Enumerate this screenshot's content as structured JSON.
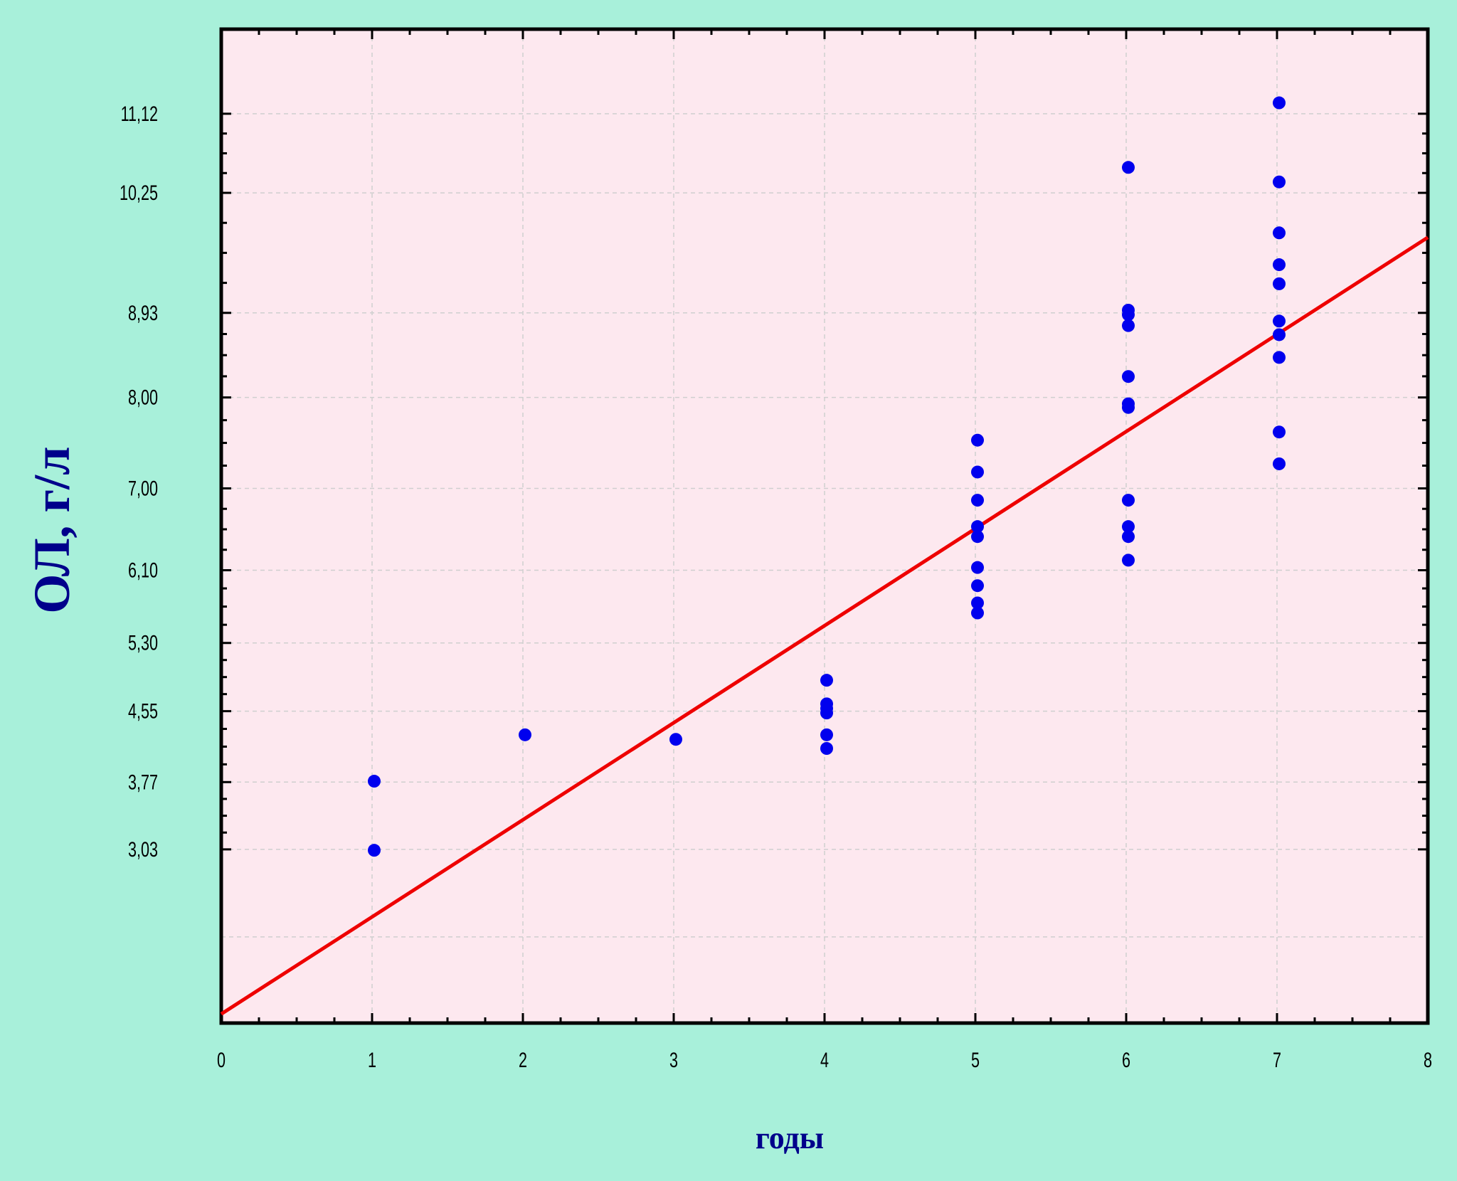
{
  "chart_data": {
    "type": "scatter",
    "title": "",
    "xlabel": "годы",
    "ylabel": "ОЛ, г/л",
    "xlim": [
      0,
      8
    ],
    "ylim": [
      1.12,
      12.05
    ],
    "grid": true,
    "x_ticks": [
      "0",
      "1",
      "2",
      "3",
      "4",
      "5",
      "6",
      "7",
      "8"
    ],
    "y_ticks": [
      {
        "value": 3.03,
        "label": "3,03"
      },
      {
        "value": 3.77,
        "label": "3,77"
      },
      {
        "value": 4.55,
        "label": "4,55"
      },
      {
        "value": 5.3,
        "label": "5,30"
      },
      {
        "value": 6.1,
        "label": "6,10"
      },
      {
        "value": 7.0,
        "label": "7,00"
      },
      {
        "value": 8.0,
        "label": "8,00"
      },
      {
        "value": 8.93,
        "label": "8,93"
      },
      {
        "value": 10.25,
        "label": "10,25"
      },
      {
        "value": 11.12,
        "label": "11,12"
      }
    ],
    "points": [
      {
        "x": 1,
        "y": 3.78
      },
      {
        "x": 1,
        "y": 3.02
      },
      {
        "x": 2,
        "y": 4.29
      },
      {
        "x": 3,
        "y": 4.24
      },
      {
        "x": 4,
        "y": 4.89
      },
      {
        "x": 4,
        "y": 4.63
      },
      {
        "x": 4,
        "y": 4.58
      },
      {
        "x": 4,
        "y": 4.53
      },
      {
        "x": 4,
        "y": 4.29
      },
      {
        "x": 4,
        "y": 4.14
      },
      {
        "x": 5,
        "y": 7.53
      },
      {
        "x": 5,
        "y": 7.18
      },
      {
        "x": 5,
        "y": 6.87
      },
      {
        "x": 5,
        "y": 6.58
      },
      {
        "x": 5,
        "y": 6.47
      },
      {
        "x": 5,
        "y": 6.13
      },
      {
        "x": 5,
        "y": 5.93
      },
      {
        "x": 5,
        "y": 5.74
      },
      {
        "x": 5,
        "y": 5.63
      },
      {
        "x": 6,
        "y": 10.53
      },
      {
        "x": 6,
        "y": 8.96
      },
      {
        "x": 6,
        "y": 8.91
      },
      {
        "x": 6,
        "y": 8.79
      },
      {
        "x": 6,
        "y": 8.23
      },
      {
        "x": 6,
        "y": 7.93
      },
      {
        "x": 6,
        "y": 7.89
      },
      {
        "x": 6,
        "y": 6.87
      },
      {
        "x": 6,
        "y": 6.58
      },
      {
        "x": 6,
        "y": 6.47
      },
      {
        "x": 6,
        "y": 6.21
      },
      {
        "x": 7,
        "y": 11.24
      },
      {
        "x": 7,
        "y": 10.37
      },
      {
        "x": 7,
        "y": 9.81
      },
      {
        "x": 7,
        "y": 9.46
      },
      {
        "x": 7,
        "y": 9.25
      },
      {
        "x": 7,
        "y": 8.84
      },
      {
        "x": 7,
        "y": 8.69
      },
      {
        "x": 7,
        "y": 8.44
      },
      {
        "x": 7,
        "y": 7.62
      },
      {
        "x": 7,
        "y": 7.27
      }
    ],
    "regression_line": {
      "x": [
        0,
        8
      ],
      "y": [
        1.22,
        9.76
      ]
    },
    "colors": {
      "background": "#a8f0da",
      "plot_background": "#fde8ef",
      "points": "#0000ee",
      "regression_line": "#ee0000",
      "axis": "#000000",
      "grid": "#cfcfcf",
      "label": "#00008b"
    }
  }
}
